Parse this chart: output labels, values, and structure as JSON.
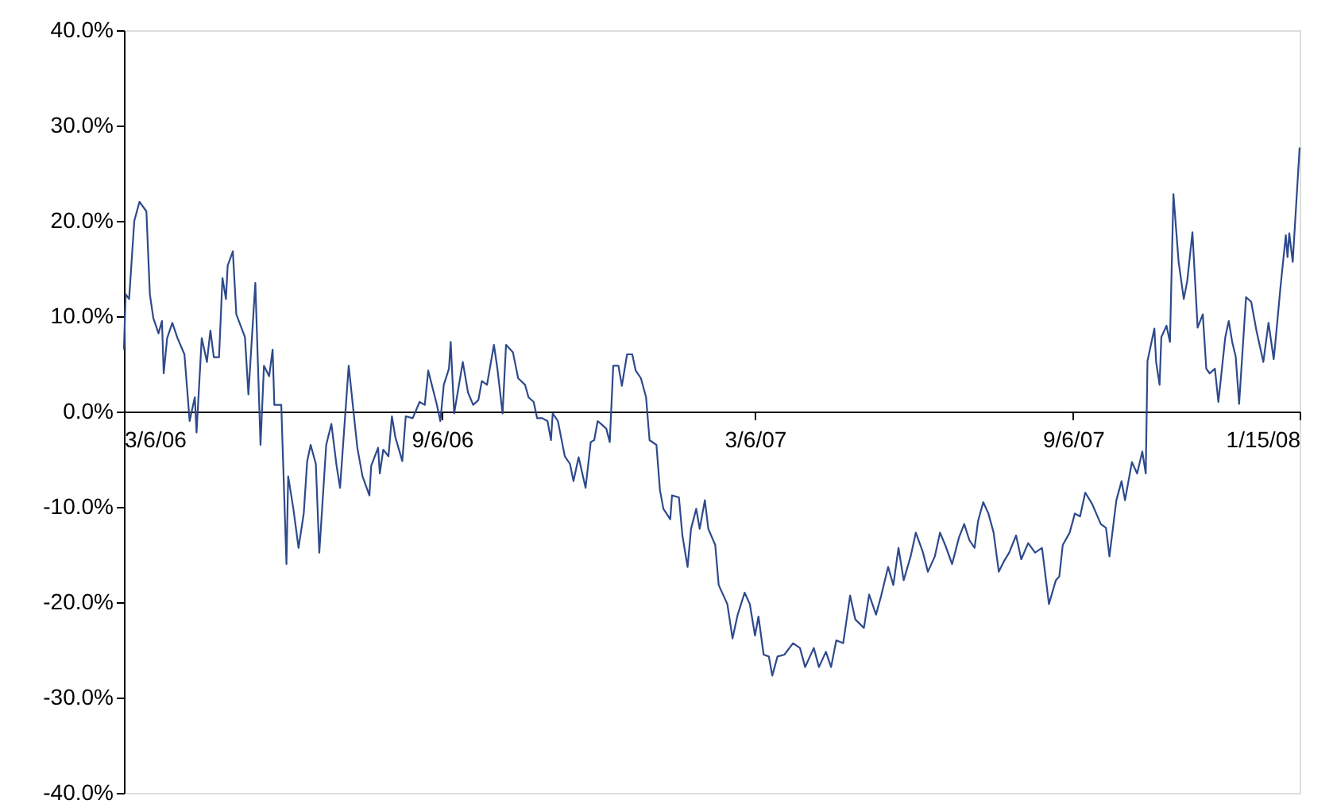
{
  "chart_data": {
    "type": "line",
    "grid": false,
    "line_style": "solid",
    "marker": "none",
    "xlim": [
      "2006-03-06",
      "2008-01-15"
    ],
    "xticks": [
      {
        "value": "2006-03-06",
        "label": "3/6/06"
      },
      {
        "value": "2006-09-06",
        "label": "9/6/06"
      },
      {
        "value": "2007-03-06",
        "label": "3/6/07"
      },
      {
        "value": "2007-09-06",
        "label": "9/6/07"
      },
      {
        "value": "2008-01-15",
        "label": "1/15/08"
      }
    ],
    "ylim": [
      -40,
      40
    ],
    "yticks": [
      {
        "value": -40,
        "label": "-40.0%"
      },
      {
        "value": -30,
        "label": "-30.0%"
      },
      {
        "value": -20,
        "label": "-20.0%"
      },
      {
        "value": -10,
        "label": "-10.0%"
      },
      {
        "value": 0,
        "label": "0.0%"
      },
      {
        "value": 10,
        "label": "10.0%"
      },
      {
        "value": 20,
        "label": "20.0%"
      },
      {
        "value": 30,
        "label": "30.0%"
      },
      {
        "value": 40,
        "label": "40.0%"
      }
    ],
    "x": [
      "2006-03-06",
      "2006-03-07",
      "2006-03-09",
      "2006-03-12",
      "2006-03-15",
      "2006-03-19",
      "2006-03-21",
      "2006-03-23",
      "2006-03-26",
      "2006-03-28",
      "2006-03-29",
      "2006-03-31",
      "2006-04-03",
      "2006-04-06",
      "2006-04-10",
      "2006-04-13",
      "2006-04-16",
      "2006-04-17",
      "2006-04-20",
      "2006-04-23",
      "2006-04-25",
      "2006-04-27",
      "2006-04-30",
      "2006-05-02",
      "2006-05-04",
      "2006-05-05",
      "2006-05-08",
      "2006-05-10",
      "2006-05-15",
      "2006-05-17",
      "2006-05-21",
      "2006-05-24",
      "2006-05-26",
      "2006-05-29",
      "2006-05-31",
      "2006-06-01",
      "2006-06-05",
      "2006-06-08",
      "2006-06-09",
      "2006-06-12",
      "2006-06-15",
      "2006-06-18",
      "2006-06-20",
      "2006-06-22",
      "2006-06-25",
      "2006-06-27",
      "2006-07-01",
      "2006-07-04",
      "2006-07-07",
      "2006-07-09",
      "2006-07-14",
      "2006-07-19",
      "2006-07-22",
      "2006-07-26",
      "2006-07-27",
      "2006-07-31",
      "2006-08-01",
      "2006-08-03",
      "2006-08-06",
      "2006-08-08",
      "2006-08-10",
      "2006-08-14",
      "2006-08-16",
      "2006-08-20",
      "2006-08-24",
      "2006-08-27",
      "2006-08-29",
      "2006-09-03",
      "2006-09-05",
      "2006-09-07",
      "2006-09-10",
      "2006-09-11",
      "2006-09-13",
      "2006-09-18",
      "2006-09-21",
      "2006-09-24",
      "2006-09-27",
      "2006-09-29",
      "2006-10-02",
      "2006-10-06",
      "2006-10-08",
      "2006-10-11",
      "2006-10-13",
      "2006-10-17",
      "2006-10-20",
      "2006-10-24",
      "2006-10-26",
      "2006-10-29",
      "2006-10-31",
      "2006-11-03",
      "2006-11-06",
      "2006-11-08",
      "2006-11-09",
      "2006-11-12",
      "2006-11-16",
      "2006-11-19",
      "2006-11-21",
      "2006-11-24",
      "2006-11-28",
      "2006-12-01",
      "2006-12-03",
      "2006-12-05",
      "2006-12-07",
      "2006-12-10",
      "2006-12-12",
      "2006-12-14",
      "2006-12-17",
      "2006-12-19",
      "2006-12-22",
      "2006-12-25",
      "2006-12-27",
      "2006-12-30",
      "2007-01-02",
      "2007-01-04",
      "2007-01-08",
      "2007-01-10",
      "2007-01-12",
      "2007-01-16",
      "2007-01-17",
      "2007-01-21",
      "2007-01-23",
      "2007-01-26",
      "2007-01-28",
      "2007-01-31",
      "2007-02-02",
      "2007-02-05",
      "2007-02-07",
      "2007-02-11",
      "2007-02-13",
      "2007-02-18",
      "2007-02-21",
      "2007-02-24",
      "2007-02-28",
      "2007-03-03",
      "2007-03-06",
      "2007-03-08",
      "2007-03-11",
      "2007-03-14",
      "2007-03-16",
      "2007-03-19",
      "2007-03-23",
      "2007-03-28",
      "2007-04-01",
      "2007-04-04",
      "2007-04-09",
      "2007-04-12",
      "2007-04-16",
      "2007-04-19",
      "2007-04-22",
      "2007-04-26",
      "2007-04-30",
      "2007-05-03",
      "2007-05-08",
      "2007-05-11",
      "2007-05-15",
      "2007-05-18",
      "2007-05-22",
      "2007-05-25",
      "2007-05-28",
      "2007-05-31",
      "2007-06-04",
      "2007-06-07",
      "2007-06-11",
      "2007-06-14",
      "2007-06-18",
      "2007-06-21",
      "2007-06-24",
      "2007-06-28",
      "2007-07-02",
      "2007-07-05",
      "2007-07-08",
      "2007-07-11",
      "2007-07-13",
      "2007-07-16",
      "2007-07-19",
      "2007-07-22",
      "2007-07-25",
      "2007-07-28",
      "2007-07-31",
      "2007-08-04",
      "2007-08-07",
      "2007-08-11",
      "2007-08-15",
      "2007-08-19",
      "2007-08-23",
      "2007-08-27",
      "2007-08-29",
      "2007-08-31",
      "2007-09-04",
      "2007-09-07",
      "2007-09-10",
      "2007-09-13",
      "2007-09-17",
      "2007-09-22",
      "2007-09-25",
      "2007-09-27",
      "2007-10-01",
      "2007-10-04",
      "2007-10-06",
      "2007-10-10",
      "2007-10-13",
      "2007-10-16",
      "2007-10-18",
      "2007-10-19",
      "2007-10-23",
      "2007-10-24",
      "2007-10-26",
      "2007-10-27",
      "2007-10-30",
      "2007-11-01",
      "2007-11-03",
      "2007-11-06",
      "2007-11-09",
      "2007-11-11",
      "2007-11-14",
      "2007-11-17",
      "2007-11-20",
      "2007-11-22",
      "2007-11-24",
      "2007-11-27",
      "2007-11-29",
      "2007-12-03",
      "2007-12-05",
      "2007-12-07",
      "2007-12-09",
      "2007-12-11",
      "2007-12-15",
      "2007-12-18",
      "2007-12-21",
      "2007-12-25",
      "2007-12-28",
      "2007-12-31",
      "2008-01-01",
      "2008-01-04",
      "2008-01-07",
      "2008-01-08",
      "2008-01-09",
      "2008-01-11",
      "2008-01-15"
    ],
    "series": [
      {
        "color": "#2e4a8c",
        "values": [
          6.5,
          12.3,
          11.8,
          20,
          22,
          21,
          12.3,
          9.8,
          8.2,
          9.5,
          4,
          7.7,
          9.3,
          7.7,
          6,
          -1,
          1.5,
          -2.2,
          7.7,
          5.2,
          8.5,
          5.7,
          5.7,
          14,
          11.8,
          15.3,
          16.8,
          10.2,
          7.8,
          1.8,
          13.5,
          -3.5,
          4.8,
          3.7,
          6.5,
          0.7,
          0.7,
          -16,
          -6.8,
          -10.2,
          -14.3,
          -10.7,
          -5.2,
          -3.5,
          -5.5,
          -14.8,
          -3.5,
          -1.3,
          -5.7,
          -8,
          4.8,
          -3.8,
          -6.8,
          -8.8,
          -5.7,
          -3.8,
          -6.5,
          -4,
          -4.7,
          -0.5,
          -2.7,
          -5.2,
          -0.5,
          -0.7,
          1,
          0.7,
          4.3,
          0.7,
          -1,
          2.8,
          4.5,
          7.3,
          -0.2,
          5.2,
          2,
          0.7,
          1.2,
          3.2,
          2.8,
          7,
          4.5,
          -0.2,
          7,
          6.2,
          3.5,
          2.8,
          1.5,
          1,
          -0.7,
          -0.7,
          -1,
          -3,
          -0.2,
          -1,
          -4.7,
          -5.5,
          -7.3,
          -4.8,
          -8,
          -3.2,
          -3,
          -1,
          -1.3,
          -1.8,
          -3.2,
          4.8,
          4.8,
          2.7,
          6,
          6,
          4.3,
          3.5,
          1.5,
          -3,
          -3.5,
          -8.2,
          -10.2,
          -11.3,
          -8.8,
          -9,
          -13,
          -16.3,
          -12.3,
          -10.2,
          -12.3,
          -9.3,
          -12.3,
          -14,
          -18.2,
          -20.2,
          -23.8,
          -21.3,
          -19,
          -20.2,
          -23.5,
          -21.5,
          -25.5,
          -25.7,
          -27.7,
          -25.7,
          -25.5,
          -24.3,
          -24.8,
          -26.8,
          -24.8,
          -26.8,
          -25.2,
          -26.8,
          -24,
          -24.3,
          -19.3,
          -21.8,
          -22.7,
          -19.2,
          -21.3,
          -19.3,
          -16.3,
          -18.2,
          -14.3,
          -17.7,
          -15.2,
          -12.7,
          -14.7,
          -16.8,
          -15.2,
          -12.7,
          -14,
          -16,
          -13.2,
          -11.8,
          -13.5,
          -14.3,
          -11.5,
          -9.5,
          -10.7,
          -12.7,
          -16.8,
          -15.7,
          -14.8,
          -13,
          -15.5,
          -13.8,
          -14.8,
          -14.3,
          -20.2,
          -17.7,
          -17.3,
          -14,
          -12.7,
          -10.7,
          -11,
          -8.5,
          -9.7,
          -11.8,
          -12.2,
          -15.2,
          -9.3,
          -7.3,
          -9.3,
          -5.3,
          -6.5,
          -4.2,
          -6.5,
          5.3,
          8.7,
          5.2,
          2.8,
          7.8,
          9,
          7.3,
          22.8,
          15.7,
          11.8,
          13.7,
          18.8,
          8.8,
          10.2,
          4.5,
          4,
          4.5,
          1,
          7.8,
          9.5,
          7.3,
          5.8,
          0.8,
          12,
          11.5,
          8.5,
          5.2,
          9.3,
          5.5,
          7.3,
          13.2,
          18.5,
          16.2,
          18.7,
          15.7,
          27.7
        ]
      }
    ]
  }
}
